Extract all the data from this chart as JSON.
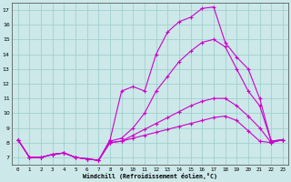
{
  "xlabel": "Windchill (Refroidissement éolien,°C)",
  "bg_color": "#cce8e8",
  "grid_color": "#99cccc",
  "line_color": "#cc00cc",
  "xlim": [
    -0.5,
    23.5
  ],
  "ylim": [
    6.5,
    17.5
  ],
  "xticks": [
    0,
    1,
    2,
    3,
    4,
    5,
    6,
    7,
    8,
    9,
    10,
    11,
    12,
    13,
    14,
    15,
    16,
    17,
    18,
    19,
    20,
    21,
    22,
    23
  ],
  "yticks": [
    7,
    8,
    9,
    10,
    11,
    12,
    13,
    14,
    15,
    16,
    17
  ],
  "lines": [
    {
      "x": [
        0,
        1,
        2,
        3,
        4,
        5,
        6,
        7,
        8,
        9,
        10,
        11,
        12,
        13,
        14,
        15,
        16,
        17,
        18,
        19,
        20,
        21,
        22,
        23
      ],
      "y": [
        8.2,
        7.0,
        7.0,
        7.2,
        7.3,
        7.0,
        6.9,
        6.8,
        8.0,
        8.1,
        8.3,
        8.5,
        8.7,
        8.9,
        9.1,
        9.3,
        9.5,
        9.7,
        9.8,
        9.5,
        8.8,
        8.1,
        8.0,
        8.2
      ]
    },
    {
      "x": [
        0,
        1,
        2,
        3,
        4,
        5,
        6,
        7,
        8,
        9,
        10,
        11,
        12,
        13,
        14,
        15,
        16,
        17,
        18,
        19,
        20,
        21,
        22,
        23
      ],
      "y": [
        8.2,
        7.0,
        7.0,
        7.2,
        7.3,
        7.0,
        6.9,
        6.8,
        8.0,
        8.1,
        8.5,
        8.9,
        9.3,
        9.7,
        10.1,
        10.5,
        10.8,
        11.0,
        11.0,
        10.5,
        9.8,
        9.0,
        8.0,
        8.2
      ]
    },
    {
      "x": [
        0,
        1,
        2,
        3,
        4,
        5,
        6,
        7,
        8,
        9,
        10,
        11,
        12,
        13,
        14,
        15,
        16,
        17,
        18,
        19,
        20,
        21,
        22,
        23
      ],
      "y": [
        8.2,
        7.0,
        7.0,
        7.2,
        7.3,
        7.0,
        6.9,
        6.8,
        8.1,
        8.3,
        9.0,
        10.0,
        11.5,
        12.5,
        13.5,
        14.2,
        14.8,
        15.0,
        14.5,
        13.0,
        11.5,
        10.5,
        8.1,
        8.2
      ]
    },
    {
      "x": [
        0,
        1,
        2,
        3,
        4,
        5,
        6,
        7,
        8,
        9,
        10,
        11,
        12,
        13,
        14,
        15,
        16,
        17,
        18,
        19,
        20,
        21,
        22,
        23
      ],
      "y": [
        8.2,
        7.0,
        7.0,
        7.2,
        7.3,
        7.0,
        6.9,
        6.8,
        8.2,
        11.5,
        11.8,
        11.5,
        14.0,
        15.5,
        16.2,
        16.5,
        17.1,
        17.2,
        14.8,
        13.8,
        13.0,
        11.0,
        8.1,
        8.2
      ]
    }
  ]
}
